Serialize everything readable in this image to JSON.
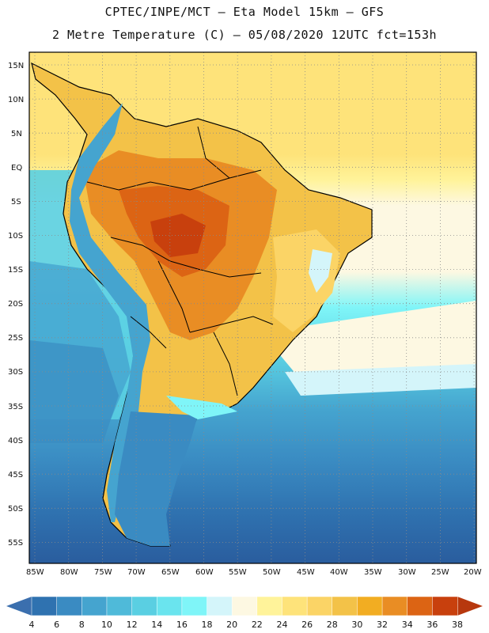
{
  "header": {
    "line1": "CPTEC/INPE/MCT –  Eta Model 15km – GFS",
    "line2": "2 Metre Temperature (C) – 05/08/2020 12UTC fct=153h"
  },
  "map": {
    "lat_labels": [
      "15N",
      "10N",
      "5N",
      "EQ",
      "5S",
      "10S",
      "15S",
      "20S",
      "25S",
      "30S",
      "35S",
      "40S",
      "45S",
      "50S",
      "55S"
    ],
    "lon_labels": [
      "85W",
      "80W",
      "75W",
      "70W",
      "65W",
      "60W",
      "55W",
      "50W",
      "45W",
      "40W",
      "35W",
      "30W",
      "25W",
      "20W"
    ]
  },
  "colorbar": {
    "labels": [
      "4",
      "6",
      "8",
      "10",
      "12",
      "14",
      "16",
      "18",
      "20",
      "22",
      "24",
      "26",
      "28",
      "30",
      "32",
      "34",
      "36",
      "38"
    ],
    "colors": [
      "#2a5d9e",
      "#2f72b0",
      "#3a8bc2",
      "#45a4cf",
      "#4fbad9",
      "#5acfe2",
      "#6ae4ee",
      "#7ff5f8",
      "#d4f5fa",
      "#fdf8e2",
      "#fff39a",
      "#fee37a",
      "#fbd466",
      "#f3c248",
      "#f2ad22",
      "#e98d24",
      "#dc6414",
      "#c8400d"
    ],
    "under_color": "#3b6fae",
    "over_color": "#b7380e"
  }
}
